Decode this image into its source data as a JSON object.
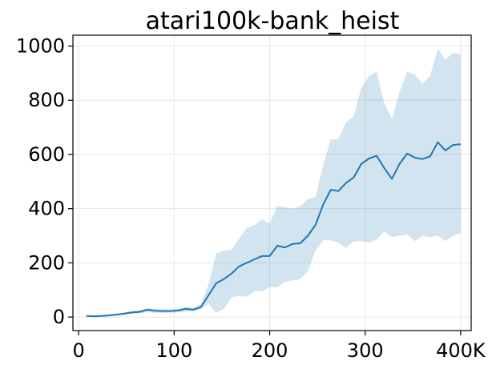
{
  "chart_data": {
    "type": "line",
    "title": "atari100k-bank_heist",
    "xlabel": "",
    "ylabel": "",
    "xlim": [
      -6000,
      411000
    ],
    "ylim": [
      -50,
      1040
    ],
    "grid": true,
    "x_ticks": [
      0,
      100000,
      200000,
      300000,
      400000
    ],
    "x_tick_labels": [
      "0",
      "100",
      "200",
      "300",
      "400K"
    ],
    "y_ticks": [
      0,
      200,
      400,
      600,
      800,
      1000
    ],
    "y_tick_labels": [
      "0",
      "200",
      "400",
      "600",
      "800",
      "1000"
    ],
    "colors": {
      "line": "#1f77b4",
      "band": "#1f77b4"
    },
    "series": [
      {
        "x": [
          8000,
          16000,
          24000,
          32000,
          40000,
          48000,
          56000,
          64000,
          72000,
          80000,
          88000,
          96000,
          104000,
          112000,
          120000,
          128000,
          136000,
          144000,
          152000,
          160000,
          168000,
          176000,
          184000,
          192000,
          200000,
          208000,
          216000,
          224000,
          232000,
          240000,
          248000,
          256000,
          264000,
          272000,
          280000,
          288000,
          296000,
          304000,
          312000,
          320000,
          328000,
          336000,
          344000,
          352000,
          360000,
          368000,
          376000,
          384000,
          392000,
          400000
        ],
        "mean": [
          4,
          3,
          4,
          6,
          9,
          13,
          17,
          19,
          27,
          23,
          22,
          22,
          24,
          30,
          27,
          37,
          80,
          125,
          140,
          160,
          187,
          200,
          213,
          225,
          225,
          263,
          257,
          270,
          272,
          300,
          340,
          415,
          470,
          465,
          495,
          515,
          565,
          585,
          595,
          550,
          510,
          565,
          603,
          588,
          583,
          593,
          645,
          615,
          635,
          638
        ],
        "lower": [
          2,
          1,
          2,
          3,
          5,
          8,
          12,
          14,
          18,
          15,
          15,
          16,
          17,
          20,
          22,
          28,
          50,
          15,
          30,
          72,
          78,
          75,
          95,
          95,
          110,
          110,
          130,
          135,
          140,
          170,
          245,
          283,
          283,
          275,
          255,
          280,
          280,
          275,
          285,
          315,
          295,
          300,
          305,
          280,
          300,
          295,
          300,
          280,
          300,
          310
        ],
        "upper": [
          6,
          6,
          7,
          9,
          12,
          17,
          22,
          25,
          32,
          30,
          29,
          28,
          30,
          38,
          35,
          46,
          120,
          235,
          245,
          248,
          290,
          328,
          340,
          360,
          345,
          410,
          405,
          400,
          410,
          435,
          442,
          560,
          655,
          655,
          720,
          740,
          845,
          890,
          905,
          790,
          730,
          830,
          905,
          895,
          860,
          890,
          990,
          950,
          975,
          970
        ]
      }
    ]
  }
}
